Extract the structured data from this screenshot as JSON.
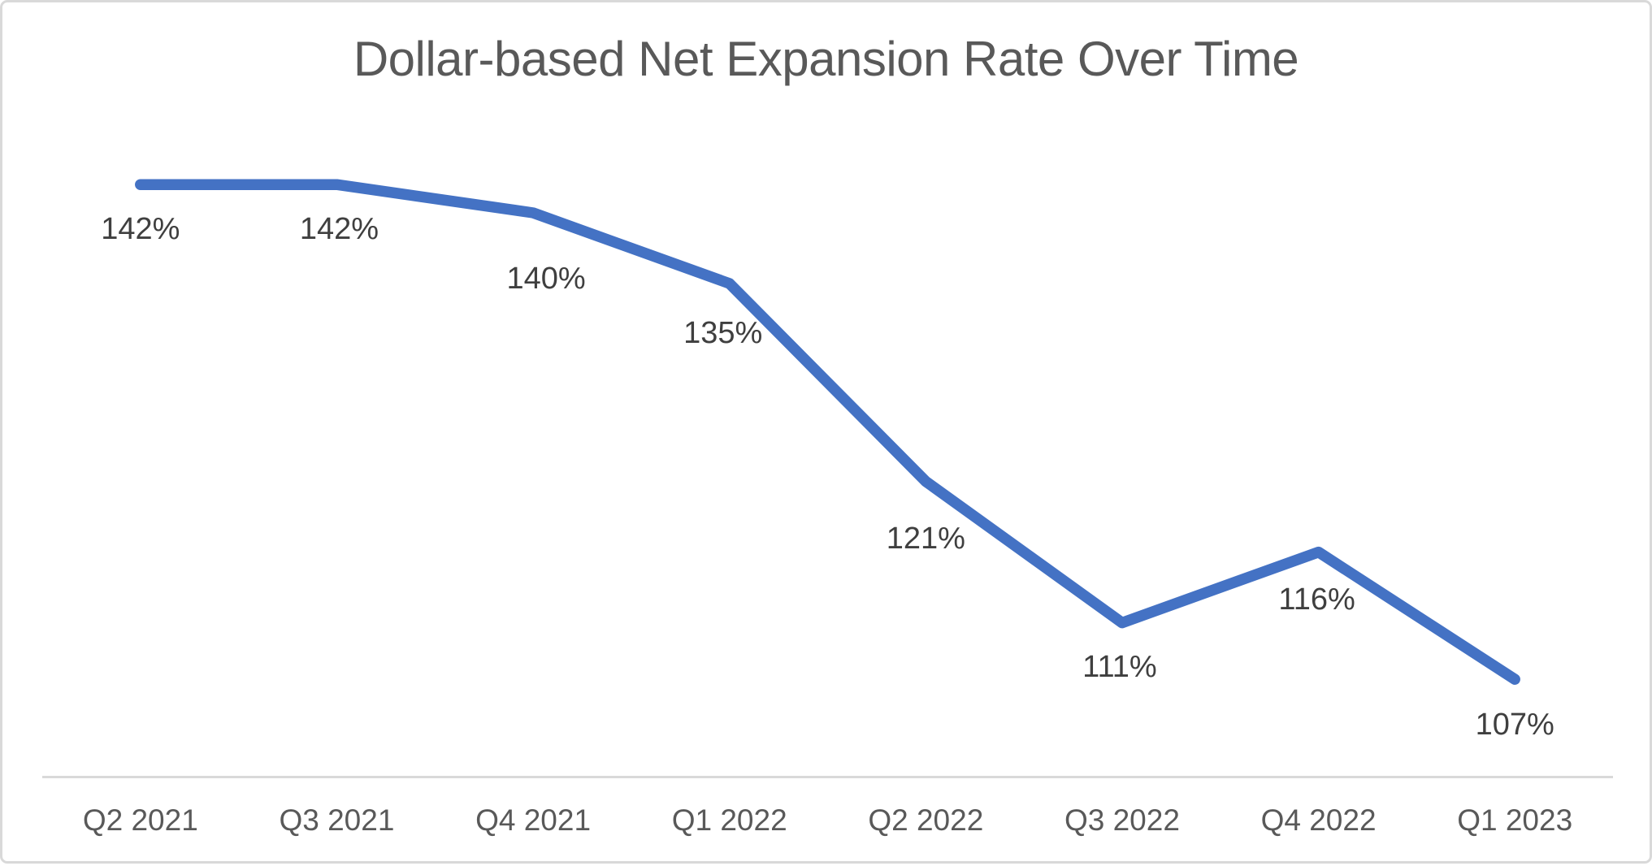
{
  "chart_data": {
    "type": "line",
    "title": "Dollar-based Net Expansion Rate Over Time",
    "categories": [
      "Q2 2021",
      "Q3 2021",
      "Q4 2021",
      "Q1 2022",
      "Q2 2022",
      "Q3 2022",
      "Q4 2022",
      "Q1 2023"
    ],
    "series": [
      {
        "name": "Dollar-based Net Expansion Rate",
        "values": [
          142,
          142,
          140,
          135,
          121,
          111,
          116,
          107
        ],
        "data_labels": [
          "142%",
          "142%",
          "140%",
          "135%",
          "121%",
          "111%",
          "116%",
          "107%"
        ]
      }
    ],
    "xlabel": "",
    "ylabel": "",
    "ylim": [
      100,
      145
    ],
    "grid": false,
    "legend": false,
    "data_label_position": "below",
    "colors": {
      "line": "#4472C4",
      "title_text": "#595959",
      "data_label_text": "#3F3F3F",
      "tick_label_text": "#595959",
      "axis_line": "#D9D9D9",
      "canvas_border": "#D9D9D9",
      "background": "#FFFFFF"
    }
  }
}
